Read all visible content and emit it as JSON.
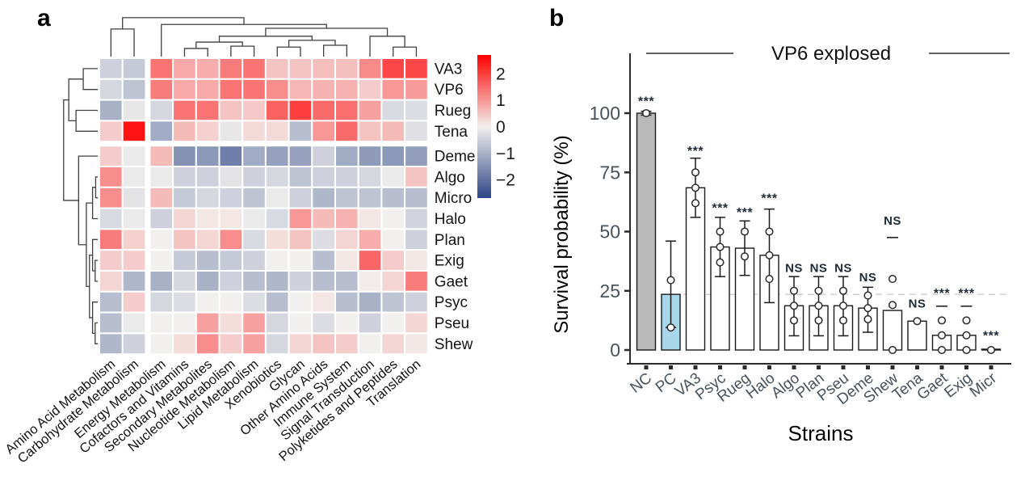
{
  "panels": {
    "a": "a",
    "b": "b"
  },
  "chart_data": [
    {
      "type": "heatmap",
      "description": "Clustered heatmap of metabolic pathway z-scores per bacterial strain",
      "rows": [
        "VA3",
        "VP6",
        "Rueg",
        "Tena",
        "Deme",
        "Algo",
        "Micro",
        "Halo",
        "Plan",
        "Exig",
        "Gaet",
        "Psyc",
        "Pseu",
        "Shew"
      ],
      "columns": [
        "Amino Acid Metabolism",
        "Carbohydrate Metabolism",
        "Energy Metabolism",
        "Cofactors and Vitamins",
        "Secondary Metabolites",
        "Nucleotide Metabolism",
        "Lipid Metabolism",
        "Xenobiotics",
        "Glycan",
        "Other Amino Acids",
        "Immune System",
        "Signal Transduction",
        "Polyketides and Peptides",
        "Translation"
      ],
      "values": [
        [
          -0.5,
          -0.6,
          1.4,
          0.8,
          0.75,
          1.3,
          1.4,
          0.5,
          0.5,
          0.55,
          0.55,
          1.15,
          1.9,
          1.9
        ],
        [
          -0.4,
          -0.7,
          1.3,
          0.8,
          0.8,
          1.4,
          1.4,
          1.1,
          0.65,
          0.7,
          0.7,
          0.4,
          1.0,
          0.95
        ],
        [
          -1.0,
          -0.15,
          -0.4,
          1.4,
          1.4,
          0.5,
          0.45,
          1.6,
          2.0,
          1.5,
          1.45,
          0.9,
          -0.35,
          -0.3
        ],
        [
          0.4,
          2.5,
          -1.1,
          0.6,
          0.35,
          -0.15,
          0.25,
          0.25,
          -0.8,
          1.0,
          1.5,
          0.5,
          0.6,
          -0.25
        ],
        [
          0.4,
          -0.1,
          0.6,
          -1.5,
          -1.4,
          -1.8,
          -1.1,
          -1.25,
          -1.25,
          -0.5,
          -1.1,
          -1.35,
          -1.4,
          -1.3
        ],
        [
          1.1,
          -0.1,
          -0.1,
          -0.5,
          -0.5,
          -0.2,
          -0.5,
          -0.4,
          -0.7,
          -0.5,
          -0.5,
          -0.4,
          -0.1,
          0.5
        ],
        [
          1.1,
          -0.2,
          0.6,
          -0.6,
          -0.4,
          -0.5,
          -0.7,
          -0.1,
          -0.5,
          -0.9,
          -0.7,
          -0.7,
          -0.8,
          -0.8
        ],
        [
          -0.35,
          -0.1,
          -0.5,
          0.3,
          0.1,
          0.1,
          -0.1,
          -0.35,
          1.0,
          0.6,
          0.7,
          0.1,
          0.0,
          -0.45
        ],
        [
          1.3,
          0.35,
          0.0,
          0.5,
          0.3,
          1.1,
          -0.35,
          0.2,
          0.5,
          -0.3,
          0.3,
          0.75,
          0.0,
          -0.5
        ],
        [
          0.4,
          0.4,
          0.0,
          -0.6,
          -0.8,
          -0.6,
          -0.5,
          0.0,
          0.0,
          -0.8,
          0.1,
          1.55,
          0.4,
          0.1
        ],
        [
          0.3,
          -0.9,
          -1.0,
          -0.4,
          -1.0,
          -0.5,
          -0.8,
          -0.9,
          -0.5,
          -0.8,
          -0.8,
          0.05,
          0.3,
          1.3
        ],
        [
          -0.8,
          0.4,
          -0.4,
          -0.3,
          0.0,
          0.0,
          -0.3,
          -0.8,
          0.0,
          0.1,
          -0.8,
          -1.0,
          -0.7,
          -0.5
        ],
        [
          -0.8,
          -0.1,
          0.0,
          0.0,
          0.9,
          0.2,
          0.9,
          -0.4,
          0.0,
          -0.3,
          0.0,
          -0.5,
          0.0,
          0.3
        ],
        [
          -0.9,
          -0.5,
          0.0,
          0.2,
          1.1,
          0.4,
          0.9,
          -0.4,
          0.3,
          0.5,
          0.4,
          0.0,
          0.3,
          0.1
        ]
      ],
      "gap_after_col": 2,
      "gap_after_row": 4,
      "colorbar": {
        "tick_labels": [
          "2",
          "1",
          "0",
          "−1",
          "−2"
        ],
        "tick_values": [
          2,
          1,
          0,
          -1,
          -2
        ],
        "domain": [
          -2.7,
          2.7
        ],
        "positive_color": "#ff0000",
        "zero_color": "#f2f0ee",
        "negative_color": "#2d4686"
      },
      "col_dendrogram": {
        "h": 0.14,
        "c": [
          {
            "h": 0.39,
            "c": [
              {
                "leaf": 0
              },
              {
                "leaf": 1
              }
            ]
          },
          {
            "h": 0.29,
            "c": [
              {
                "leaf": 2
              },
              {
                "h": 0.375,
                "c": [
                  {
                    "h": 0.55,
                    "c": [
                      {
                        "h": 0.68,
                        "c": [
                          {
                            "h": 0.82,
                            "c": [
                              {
                                "leaf": 3
                              },
                              {
                                "leaf": 4
                              }
                            ]
                          },
                          {
                            "h": 0.77,
                            "c": [
                              {
                                "leaf": 5
                              },
                              {
                                "leaf": 6
                              }
                            ]
                          }
                        ]
                      },
                      {
                        "h": 0.64,
                        "c": [
                          {
                            "h": 0.79,
                            "c": [
                              {
                                "leaf": 7
                              },
                              {
                                "leaf": 8
                              }
                            ]
                          },
                          {
                            "h": 0.75,
                            "c": [
                              {
                                "leaf": 9
                              },
                              {
                                "leaf": 10
                              }
                            ]
                          }
                        ]
                      }
                    ]
                  },
                  {
                    "h": 0.55,
                    "c": [
                      {
                        "leaf": 11
                      },
                      {
                        "h": 0.79,
                        "c": [
                          {
                            "leaf": 12
                          },
                          {
                            "leaf": 13
                          }
                        ]
                      }
                    ]
                  }
                ]
              }
            ]
          }
        ]
      },
      "row_dendrogram": {
        "h": 0.34,
        "c": [
          {
            "h": 0.44,
            "c": [
              {
                "h": 0.72,
                "c": [
                  {
                    "leaf": 0
                  },
                  {
                    "leaf": 1
                  }
                ]
              },
              {
                "h": 0.58,
                "c": [
                  {
                    "leaf": 2
                  },
                  {
                    "leaf": 3
                  }
                ]
              }
            ]
          },
          {
            "h": 0.63,
            "c": [
              {
                "leaf": 4
              },
              {
                "h": 0.78,
                "c": [
                  {
                    "h": 0.9,
                    "c": [
                      {
                        "h": 0.96,
                        "c": [
                          {
                            "leaf": 5
                          },
                          {
                            "leaf": 6
                          }
                        ]
                      },
                      {
                        "leaf": 7
                      }
                    ]
                  },
                  {
                    "h": 0.84,
                    "c": [
                      {
                        "h": 0.9,
                        "c": [
                          {
                            "leaf": 8
                          },
                          {
                            "h": 0.95,
                            "c": [
                              {
                                "leaf": 9
                              },
                              {
                                "leaf": 10
                              }
                            ]
                          }
                        ]
                      },
                      {
                        "h": 0.9,
                        "c": [
                          {
                            "leaf": 11
                          },
                          {
                            "h": 0.95,
                            "c": [
                              {
                                "leaf": 12
                              },
                              {
                                "leaf": 13
                              }
                            ]
                          }
                        ]
                      }
                    ]
                  }
                ]
              }
            ]
          }
        ]
      }
    },
    {
      "type": "bar",
      "title": "VP6 explosed",
      "xlabel": "Strains",
      "ylabel": "Survival probability (%)",
      "ylim": [
        0,
        112
      ],
      "yticks": [
        0,
        25,
        50,
        75,
        100
      ],
      "ytick_labels": [
        "0",
        "25",
        "50",
        "75",
        "100"
      ],
      "reference_line_y": 23.5,
      "legend": "none",
      "grid": false,
      "categories": [
        "NC",
        "PC",
        "VA3",
        "Psyc",
        "Rueg",
        "Halo",
        "Algo",
        "Plan",
        "Pseu",
        "Deme",
        "Shew",
        "Tena",
        "Gaet",
        "Exig",
        "Micr"
      ],
      "values": [
        100,
        23.5,
        68.5,
        43.5,
        43,
        40,
        18.7,
        18.7,
        18.7,
        17.7,
        16.7,
        12.2,
        6.2,
        6.2,
        0
      ],
      "colors": {
        "nc_fill": "#b9b9b9",
        "pc_fill": "#a8d7ea",
        "default_fill": "#ffffff",
        "outline": "#1a1a1a",
        "sig_text": "#1f2a38",
        "tick_text": "#47525c",
        "ref_line": "#cccccc"
      },
      "bars": [
        {
          "label": "NC",
          "value": 100,
          "fill": "#b9b9b9",
          "points": [
            100
          ],
          "error": [
            99.2,
            100.8
          ],
          "sig": "***",
          "sig_y": 107
        },
        {
          "label": "PC",
          "value": 23.5,
          "fill": "#a8d7ea",
          "points": [
            29.5,
            9.5
          ],
          "error": [
            9.5,
            46
          ],
          "sig": null,
          "sig_y": null
        },
        {
          "label": "VA3",
          "value": 68.5,
          "fill": "#ffffff",
          "points": [
            75,
            68.5,
            62
          ],
          "error": [
            56,
            81
          ],
          "sig": "***",
          "sig_y": 86
        },
        {
          "label": "Psyc",
          "value": 43.5,
          "fill": "#ffffff",
          "points": [
            50,
            43.5,
            37
          ],
          "error": [
            31,
            56
          ],
          "sig": "***",
          "sig_y": 62
        },
        {
          "label": "Rueg",
          "value": 43,
          "fill": "#ffffff",
          "points": [
            50,
            39.5
          ],
          "error": [
            31.5,
            54.5
          ],
          "sig": "***",
          "sig_y": 60
        },
        {
          "label": "Halo",
          "value": 40,
          "fill": "#ffffff",
          "points": [
            50,
            40,
            30
          ],
          "error": [
            20,
            59.5
          ],
          "sig": "***",
          "sig_y": 66
        },
        {
          "label": "Algo",
          "value": 18.7,
          "fill": "#ffffff",
          "points": [
            25,
            18.7,
            12.5
          ],
          "error": [
            6,
            31
          ],
          "sig": "NS",
          "sig_y": 35
        },
        {
          "label": "Plan",
          "value": 18.7,
          "fill": "#ffffff",
          "points": [
            25,
            18.7,
            12.5
          ],
          "error": [
            6,
            31
          ],
          "sig": "NS",
          "sig_y": 35
        },
        {
          "label": "Pseu",
          "value": 18.7,
          "fill": "#ffffff",
          "points": [
            25,
            18.7,
            12.5
          ],
          "error": [
            6,
            31
          ],
          "sig": "NS",
          "sig_y": 35
        },
        {
          "label": "Deme",
          "value": 17.7,
          "fill": "#ffffff",
          "points": [
            23,
            17.7,
            13
          ],
          "error": [
            7.5,
            26.5
          ],
          "sig": "NS",
          "sig_y": 31
        },
        {
          "label": "Shew",
          "value": 16.7,
          "fill": "#ffffff",
          "points": [
            30,
            19,
            0
          ],
          "error": null,
          "sig": "NS",
          "sig_y": 55,
          "dash_y": 47.5
        },
        {
          "label": "Tena",
          "value": 12.2,
          "fill": "#ffffff",
          "points": [
            12.2
          ],
          "error": null,
          "sig": "NS",
          "sig_y": 20
        },
        {
          "label": "Gaet",
          "value": 6.2,
          "fill": "#ffffff",
          "points": [
            12.5,
            6.2,
            0
          ],
          "error": null,
          "sig": "***",
          "sig_y": 26,
          "dash_y": 18.5
        },
        {
          "label": "Exig",
          "value": 6.2,
          "fill": "#ffffff",
          "points": [
            12.5,
            6.2,
            0
          ],
          "error": null,
          "sig": "***",
          "sig_y": 26,
          "dash_y": 18.5
        },
        {
          "label": "Micr",
          "value": 0,
          "fill": "#ffffff",
          "points": [
            0
          ],
          "error": null,
          "sig": "***",
          "sig_y": 8
        }
      ]
    }
  ]
}
